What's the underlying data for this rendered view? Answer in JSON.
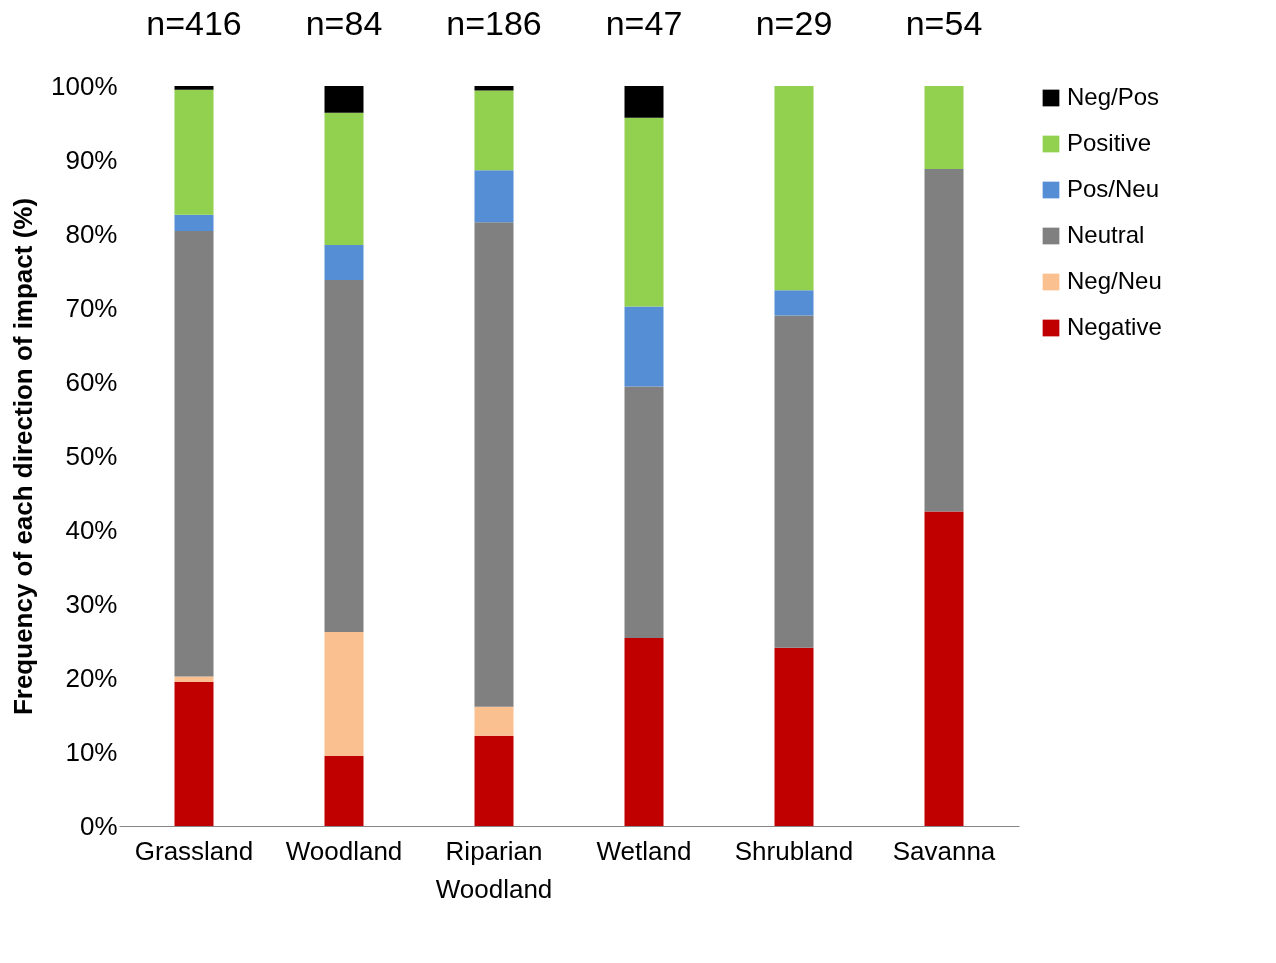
{
  "chart_data": {
    "type": "bar",
    "stacked": true,
    "ylabel": "Frequency  of each direction of impact (%)",
    "categories": [
      "Grassland",
      "Woodland",
      "Riparian Woodland",
      "Wetland",
      "Shrubland",
      "Savanna"
    ],
    "series": [
      {
        "name": "Negative",
        "color": "#c00000",
        "values": [
          19.5,
          9.5,
          12.2,
          25.4,
          24.1,
          42.5
        ]
      },
      {
        "name": "Neg/Neu",
        "color": "#fac090",
        "values": [
          0.7,
          16.7,
          3.9,
          0,
          0,
          0
        ]
      },
      {
        "name": "Neutral",
        "color": "#808080",
        "values": [
          60.2,
          47.6,
          65.5,
          34.0,
          44.9,
          46.3
        ]
      },
      {
        "name": "Pos/Neu",
        "color": "#558ed5",
        "values": [
          2.2,
          4.7,
          7.0,
          10.8,
          3.4,
          0
        ]
      },
      {
        "name": "Positive",
        "color": "#92d050",
        "values": [
          16.9,
          17.9,
          10.8,
          25.5,
          27.6,
          11.2
        ]
      },
      {
        "name": "Neg/Pos",
        "color": "#000000",
        "values": [
          0.5,
          3.6,
          0.6,
          4.3,
          0,
          0
        ]
      }
    ],
    "ylim": [
      0,
      100
    ],
    "yticks": [
      {
        "value": 0,
        "label": "0%"
      },
      {
        "value": 10,
        "label": "10%"
      },
      {
        "value": 20,
        "label": "20%"
      },
      {
        "value": 30,
        "label": "30%"
      },
      {
        "value": 40,
        "label": "40%"
      },
      {
        "value": 50,
        "label": "50%"
      },
      {
        "value": 60,
        "label": "60%"
      },
      {
        "value": 70,
        "label": "70%"
      },
      {
        "value": 80,
        "label": "80%"
      },
      {
        "value": 90,
        "label": "90%"
      },
      {
        "value": 100,
        "label": "100%"
      }
    ],
    "annotations": [
      "n=416",
      "n=84",
      "n=186",
      "n=47",
      "n=29",
      "n=54"
    ],
    "grid": false,
    "legend": "right"
  }
}
